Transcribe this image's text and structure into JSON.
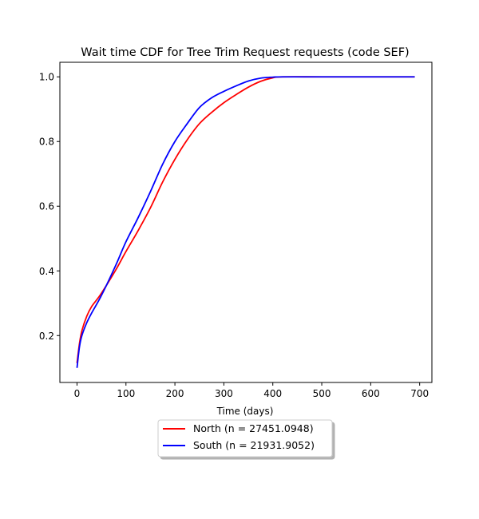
{
  "chart_data": {
    "type": "line",
    "title": "Wait time CDF for Tree Trim Request  requests (code SEF)",
    "xlabel": "Time (days)",
    "ylabel": "",
    "xlim": [
      -35,
      725
    ],
    "ylim": [
      0.055,
      1.045
    ],
    "xticks": [
      0,
      100,
      200,
      300,
      400,
      500,
      600,
      700
    ],
    "yticks": [
      0.2,
      0.4,
      0.6,
      0.8,
      1.0
    ],
    "xtick_labels": [
      "0",
      "100",
      "200",
      "300",
      "400",
      "500",
      "600",
      "700"
    ],
    "ytick_labels": [
      "0.2",
      "0.4",
      "0.6",
      "0.8",
      "1.0"
    ],
    "grid": false,
    "legend_position": "below plot, centered",
    "series": [
      {
        "name": "North (n = 27451.0948)",
        "color": "#ff0000",
        "points": [
          [
            0,
            0.115
          ],
          [
            5,
            0.175
          ],
          [
            10,
            0.215
          ],
          [
            20,
            0.26
          ],
          [
            30,
            0.29
          ],
          [
            45,
            0.32
          ],
          [
            60,
            0.355
          ],
          [
            80,
            0.405
          ],
          [
            100,
            0.46
          ],
          [
            125,
            0.525
          ],
          [
            150,
            0.595
          ],
          [
            175,
            0.675
          ],
          [
            200,
            0.745
          ],
          [
            225,
            0.805
          ],
          [
            250,
            0.855
          ],
          [
            275,
            0.89
          ],
          [
            300,
            0.92
          ],
          [
            325,
            0.945
          ],
          [
            350,
            0.968
          ],
          [
            375,
            0.986
          ],
          [
            400,
            0.997
          ],
          [
            420,
            1.0
          ],
          [
            500,
            1.0
          ],
          [
            600,
            1.0
          ],
          [
            690,
            1.0
          ]
        ]
      },
      {
        "name": "South (n = 21931.9052)",
        "color": "#0000ff",
        "points": [
          [
            0,
            0.1
          ],
          [
            5,
            0.165
          ],
          [
            10,
            0.2
          ],
          [
            20,
            0.24
          ],
          [
            30,
            0.27
          ],
          [
            45,
            0.31
          ],
          [
            60,
            0.355
          ],
          [
            80,
            0.42
          ],
          [
            100,
            0.49
          ],
          [
            125,
            0.565
          ],
          [
            150,
            0.645
          ],
          [
            175,
            0.73
          ],
          [
            200,
            0.8
          ],
          [
            225,
            0.855
          ],
          [
            250,
            0.905
          ],
          [
            275,
            0.935
          ],
          [
            300,
            0.955
          ],
          [
            325,
            0.972
          ],
          [
            350,
            0.987
          ],
          [
            375,
            0.996
          ],
          [
            400,
            0.999
          ],
          [
            420,
            1.0
          ],
          [
            500,
            1.0
          ],
          [
            600,
            1.0
          ],
          [
            690,
            1.0
          ]
        ]
      }
    ]
  }
}
